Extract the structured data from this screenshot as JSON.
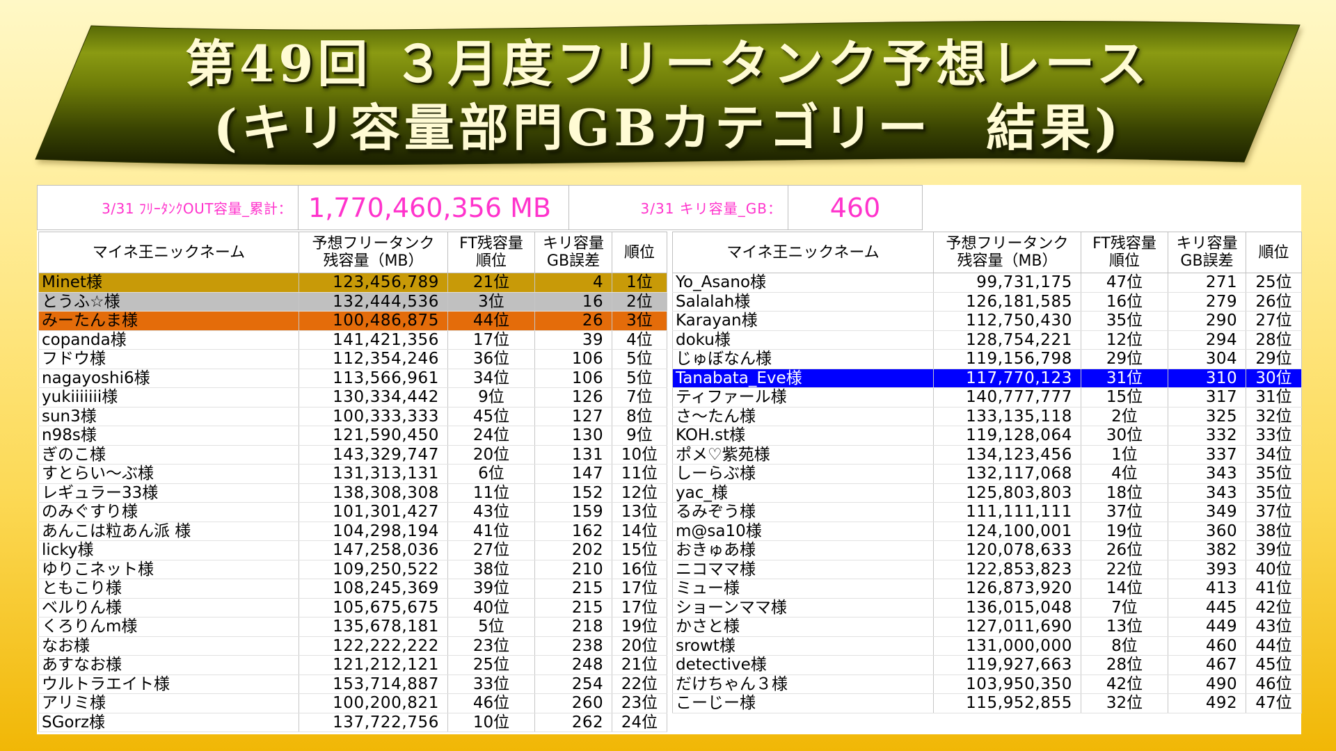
{
  "title": {
    "line1": "第49回 ３月度フリータンク予想レース",
    "line2": "(キリ容量部門GBカテゴリー　結果)"
  },
  "summary": {
    "ft_out_label": "3/31 ﾌﾘｰﾀﾝｸOUT容量_累計：",
    "ft_out_value": "1,770,460,356 MB",
    "kiri_label": "3/31 キリ容量_GB：",
    "kiri_value": "460"
  },
  "headers": {
    "name": "マイネ王ニックネーム",
    "predicted": "予想フリータンク\n残容量（MB）",
    "ft_rank": "FT残容量\n順位",
    "gb_error": "キリ容量\nGB誤差",
    "rank": "順位"
  },
  "colors": {
    "summary_text": "#ff33cc",
    "title_text": "#fffbd4"
  },
  "left_table": {
    "rows": [
      {
        "name": "Minet様",
        "predicted": "123,456,789",
        "ft_rank": "21位",
        "gb_error": "4",
        "rank": "1位",
        "bg": "#c89a08"
      },
      {
        "name": "とうふ☆様",
        "predicted": "132,444,536",
        "ft_rank": "3位",
        "gb_error": "16",
        "rank": "2位",
        "bg": "#c0c0c0"
      },
      {
        "name": "みーたんま様",
        "predicted": "100,486,875",
        "ft_rank": "44位",
        "gb_error": "26",
        "rank": "3位",
        "bg": "#e46c0a"
      },
      {
        "name": "copanda様",
        "predicted": "141,421,356",
        "ft_rank": "17位",
        "gb_error": "39",
        "rank": "4位"
      },
      {
        "name": "フドウ様",
        "predicted": "112,354,246",
        "ft_rank": "36位",
        "gb_error": "106",
        "rank": "5位"
      },
      {
        "name": "nagayoshi6様",
        "predicted": "113,566,961",
        "ft_rank": "34位",
        "gb_error": "106",
        "rank": "5位"
      },
      {
        "name": "yukiiiiiii様",
        "predicted": "130,334,442",
        "ft_rank": "9位",
        "gb_error": "126",
        "rank": "7位"
      },
      {
        "name": "sun3様",
        "predicted": "100,333,333",
        "ft_rank": "45位",
        "gb_error": "127",
        "rank": "8位"
      },
      {
        "name": "n98s様",
        "predicted": "121,590,450",
        "ft_rank": "24位",
        "gb_error": "130",
        "rank": "9位"
      },
      {
        "name": "ぎのこ様",
        "predicted": "143,329,747",
        "ft_rank": "20位",
        "gb_error": "131",
        "rank": "10位"
      },
      {
        "name": "すとらい～ぶ様",
        "predicted": "131,313,131",
        "ft_rank": "6位",
        "gb_error": "147",
        "rank": "11位"
      },
      {
        "name": "レギュラー33様",
        "predicted": "138,308,308",
        "ft_rank": "11位",
        "gb_error": "152",
        "rank": "12位"
      },
      {
        "name": "のみぐすり様",
        "predicted": "101,301,427",
        "ft_rank": "43位",
        "gb_error": "159",
        "rank": "13位"
      },
      {
        "name": "あんこは粒あん派 様",
        "predicted": "104,298,194",
        "ft_rank": "41位",
        "gb_error": "162",
        "rank": "14位"
      },
      {
        "name": "licky様",
        "predicted": "147,258,036",
        "ft_rank": "27位",
        "gb_error": "202",
        "rank": "15位"
      },
      {
        "name": "ゆりこネット様",
        "predicted": "109,250,522",
        "ft_rank": "38位",
        "gb_error": "210",
        "rank": "16位"
      },
      {
        "name": "ともこり様",
        "predicted": "108,245,369",
        "ft_rank": "39位",
        "gb_error": "215",
        "rank": "17位"
      },
      {
        "name": "ベルりん様",
        "predicted": "105,675,675",
        "ft_rank": "40位",
        "gb_error": "215",
        "rank": "17位"
      },
      {
        "name": "くろりんm様",
        "predicted": "135,678,181",
        "ft_rank": "5位",
        "gb_error": "218",
        "rank": "19位"
      },
      {
        "name": "なお様",
        "predicted": "122,222,222",
        "ft_rank": "23位",
        "gb_error": "238",
        "rank": "20位"
      },
      {
        "name": "あすなお様",
        "predicted": "121,212,121",
        "ft_rank": "25位",
        "gb_error": "248",
        "rank": "21位"
      },
      {
        "name": "ウルトラエイト様",
        "predicted": "153,714,887",
        "ft_rank": "33位",
        "gb_error": "254",
        "rank": "22位"
      },
      {
        "name": "アリミ様",
        "predicted": "100,200,821",
        "ft_rank": "46位",
        "gb_error": "260",
        "rank": "23位"
      },
      {
        "name": "SGorz様",
        "predicted": "137,722,756",
        "ft_rank": "10位",
        "gb_error": "262",
        "rank": "24位"
      }
    ]
  },
  "right_table": {
    "rows": [
      {
        "name": "Yo_Asano様",
        "predicted": "99,731,175",
        "ft_rank": "47位",
        "gb_error": "271",
        "rank": "25位"
      },
      {
        "name": "Salalah様",
        "predicted": "126,181,585",
        "ft_rank": "16位",
        "gb_error": "279",
        "rank": "26位"
      },
      {
        "name": "Karayan様",
        "predicted": "112,750,430",
        "ft_rank": "35位",
        "gb_error": "290",
        "rank": "27位"
      },
      {
        "name": "doku様",
        "predicted": "128,754,221",
        "ft_rank": "12位",
        "gb_error": "294",
        "rank": "28位"
      },
      {
        "name": "じゅぼなん様",
        "predicted": "119,156,798",
        "ft_rank": "29位",
        "gb_error": "304",
        "rank": "29位"
      },
      {
        "name": "Tanabata_Eve様",
        "predicted": "117,770,123",
        "ft_rank": "31位",
        "gb_error": "310",
        "rank": "30位",
        "bg": "#0000ff",
        "fg": "#ffffff"
      },
      {
        "name": "ティファール様",
        "predicted": "140,777,777",
        "ft_rank": "15位",
        "gb_error": "317",
        "rank": "31位"
      },
      {
        "name": "さ～たん様",
        "predicted": "133,135,118",
        "ft_rank": "2位",
        "gb_error": "325",
        "rank": "32位"
      },
      {
        "name": "KOH.st様",
        "predicted": "119,128,064",
        "ft_rank": "30位",
        "gb_error": "332",
        "rank": "33位"
      },
      {
        "name": "ポメ♡紫苑様",
        "predicted": "134,123,456",
        "ft_rank": "1位",
        "gb_error": "337",
        "rank": "34位"
      },
      {
        "name": "しーらぶ様",
        "predicted": "132,117,068",
        "ft_rank": "4位",
        "gb_error": "343",
        "rank": "35位"
      },
      {
        "name": "yac_様",
        "predicted": "125,803,803",
        "ft_rank": "18位",
        "gb_error": "343",
        "rank": "35位"
      },
      {
        "name": "るみぞう様",
        "predicted": "111,111,111",
        "ft_rank": "37位",
        "gb_error": "349",
        "rank": "37位"
      },
      {
        "name": "m@sa10様",
        "predicted": "124,100,001",
        "ft_rank": "19位",
        "gb_error": "360",
        "rank": "38位"
      },
      {
        "name": "おきゅあ様",
        "predicted": "120,078,633",
        "ft_rank": "26位",
        "gb_error": "382",
        "rank": "39位"
      },
      {
        "name": "ニコママ様",
        "predicted": "122,853,823",
        "ft_rank": "22位",
        "gb_error": "393",
        "rank": "40位"
      },
      {
        "name": "ミュー様",
        "predicted": "126,873,920",
        "ft_rank": "14位",
        "gb_error": "413",
        "rank": "41位"
      },
      {
        "name": "ショーンママ様",
        "predicted": "136,015,048",
        "ft_rank": "7位",
        "gb_error": "445",
        "rank": "42位"
      },
      {
        "name": "かさと様",
        "predicted": "127,011,690",
        "ft_rank": "13位",
        "gb_error": "449",
        "rank": "43位"
      },
      {
        "name": "srowt様",
        "predicted": "131,000,000",
        "ft_rank": "8位",
        "gb_error": "460",
        "rank": "44位"
      },
      {
        "name": "detective様",
        "predicted": "119,927,663",
        "ft_rank": "28位",
        "gb_error": "467",
        "rank": "45位"
      },
      {
        "name": "だけちゃん３様",
        "predicted": "103,950,350",
        "ft_rank": "42位",
        "gb_error": "490",
        "rank": "46位"
      },
      {
        "name": "こーじー様",
        "predicted": "115,952,855",
        "ft_rank": "32位",
        "gb_error": "492",
        "rank": "47位"
      }
    ]
  }
}
